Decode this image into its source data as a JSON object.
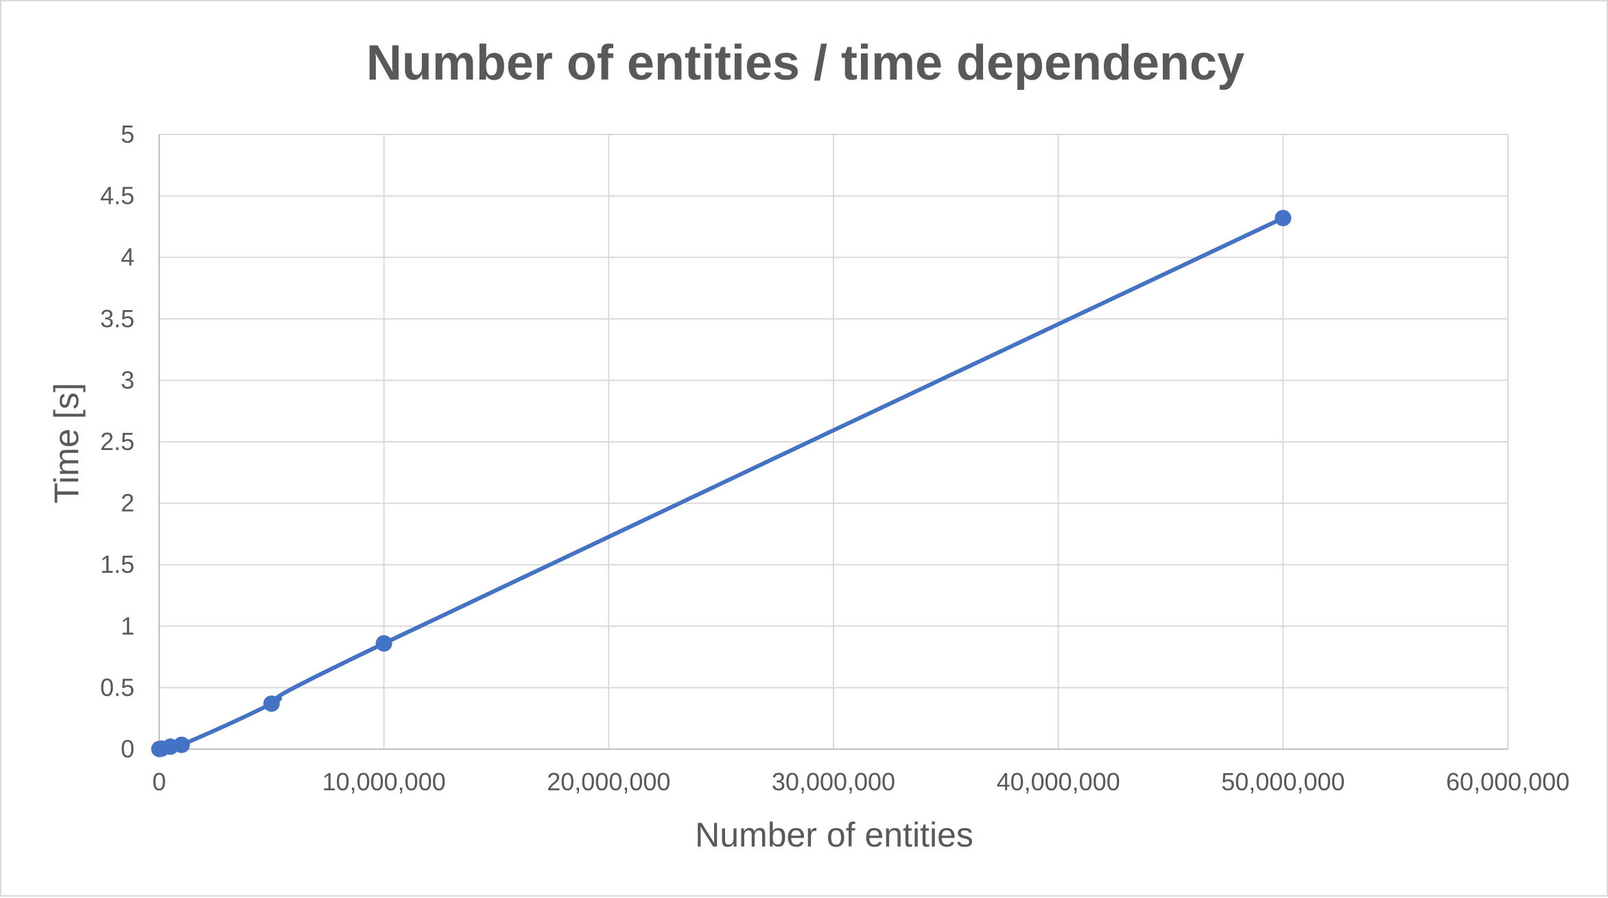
{
  "chart_data": {
    "type": "scatter",
    "title": "Number of entities / time dependency",
    "xlabel": "Number of entities",
    "ylabel": "Time [s]",
    "xlim": [
      0,
      60000000
    ],
    "ylim": [
      0,
      5
    ],
    "x_ticks": [
      0,
      10000000,
      20000000,
      30000000,
      40000000,
      50000000,
      60000000
    ],
    "x_tick_labels": [
      "0",
      "10,000,000",
      "20,000,000",
      "30,000,000",
      "40,000,000",
      "50,000,000",
      "60,000,000"
    ],
    "y_ticks": [
      0,
      0.5,
      1,
      1.5,
      2,
      2.5,
      3,
      3.5,
      4,
      4.5,
      5
    ],
    "y_tick_labels": [
      "0",
      "0.5",
      "1",
      "1.5",
      "2",
      "2.5",
      "3",
      "3.5",
      "4",
      "4.5",
      "5"
    ],
    "grid": true,
    "legend": "none",
    "line_style": "smooth",
    "series": [
      {
        "color": "#4472c4",
        "x": [
          10000,
          100000,
          500000,
          1000000,
          5000000,
          10000000,
          50000000
        ],
        "y": [
          0.001,
          0.004,
          0.02,
          0.035,
          0.37,
          0.86,
          4.32
        ]
      }
    ]
  }
}
